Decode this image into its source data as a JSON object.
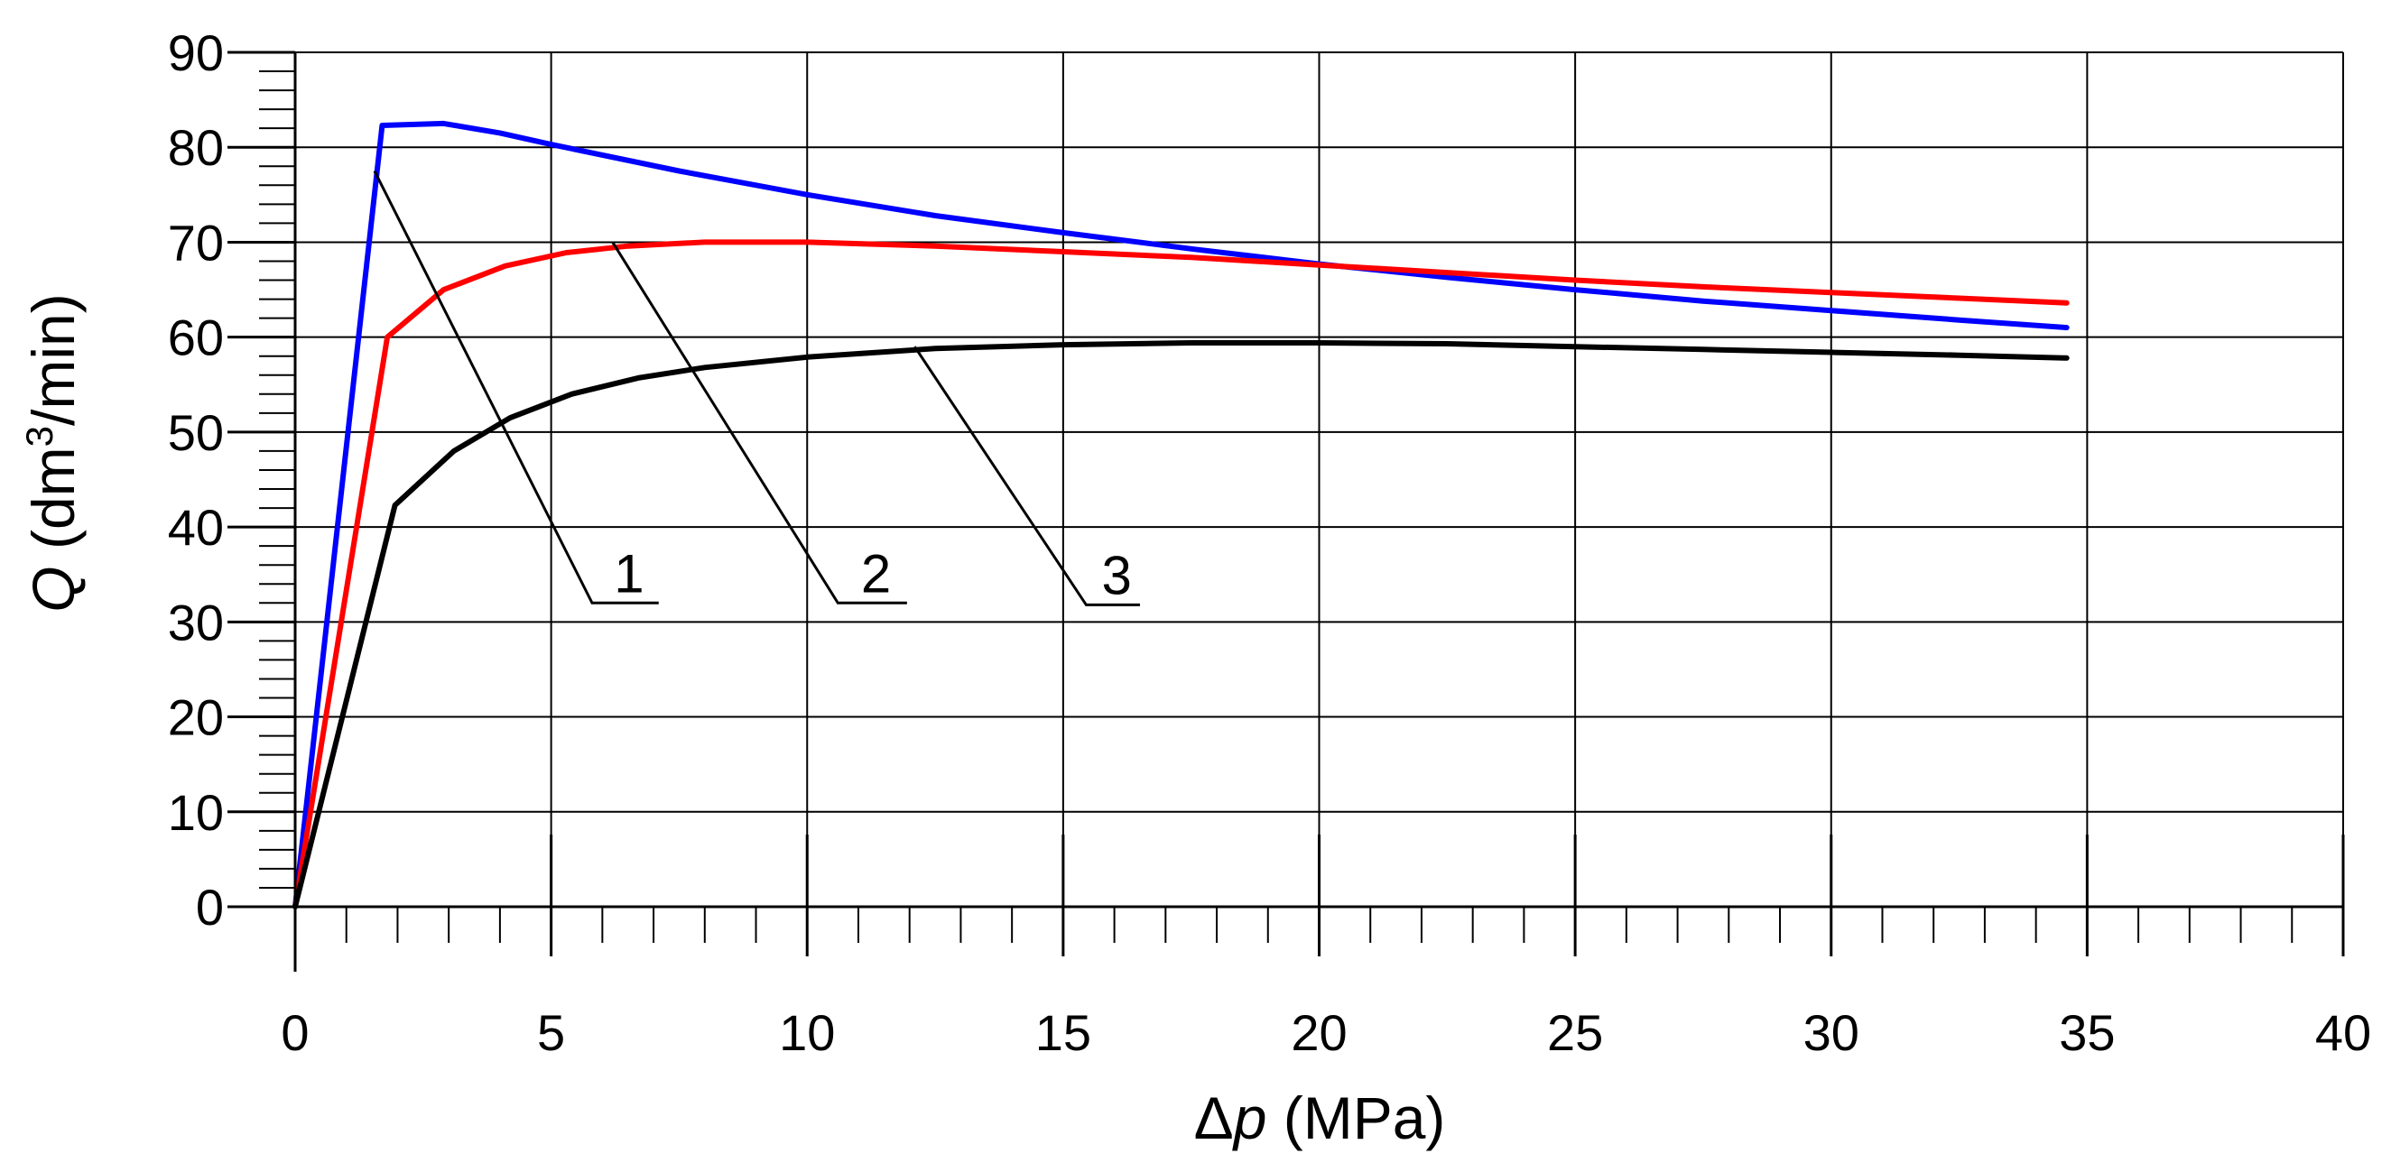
{
  "chart_data": {
    "type": "line",
    "title": "",
    "xlabel": {
      "symbol": "Δ",
      "variable": "p",
      "unit": " (MPa)"
    },
    "ylabel": {
      "variable": "Q",
      "unit_prefix": " (dm",
      "unit_sup": "3",
      "unit_suffix": "/min)"
    },
    "xlim": [
      0,
      40
    ],
    "ylim": [
      0,
      90
    ],
    "xticks": [
      0,
      5,
      10,
      15,
      20,
      25,
      30,
      35,
      40
    ],
    "yticks": [
      0,
      10,
      20,
      30,
      40,
      50,
      60,
      70,
      80,
      90
    ],
    "grid": true,
    "series": [
      {
        "name": "1",
        "color": "#0000ff",
        "points": [
          [
            0,
            0
          ],
          [
            1.7,
            82.3
          ],
          [
            2.9,
            82.5
          ],
          [
            4.0,
            81.5
          ],
          [
            5.0,
            80.3
          ],
          [
            7.5,
            77.5
          ],
          [
            10.0,
            75.0
          ],
          [
            12.5,
            72.8
          ],
          [
            15.0,
            71.0
          ],
          [
            17.5,
            69.3
          ],
          [
            20.0,
            67.7
          ],
          [
            22.5,
            66.3
          ],
          [
            25.0,
            65.0
          ],
          [
            27.5,
            63.8
          ],
          [
            30.0,
            62.8
          ],
          [
            32.5,
            61.8
          ],
          [
            34.6,
            61.0
          ]
        ]
      },
      {
        "name": "2",
        "color": "#ff0000",
        "points": [
          [
            0,
            0
          ],
          [
            1.8,
            60.0
          ],
          [
            2.9,
            65.0
          ],
          [
            4.1,
            67.5
          ],
          [
            5.3,
            68.9
          ],
          [
            6.5,
            69.6
          ],
          [
            8.0,
            70.0
          ],
          [
            10.0,
            70.0
          ],
          [
            12.5,
            69.6
          ],
          [
            15.0,
            69.0
          ],
          [
            17.5,
            68.4
          ],
          [
            20.0,
            67.6
          ],
          [
            22.5,
            66.8
          ],
          [
            25.0,
            66.0
          ],
          [
            27.5,
            65.3
          ],
          [
            30.0,
            64.7
          ],
          [
            32.5,
            64.1
          ],
          [
            34.6,
            63.6
          ]
        ]
      },
      {
        "name": "3",
        "color": "#000000",
        "points": [
          [
            0,
            0
          ],
          [
            1.95,
            42.3
          ],
          [
            3.1,
            48.0
          ],
          [
            4.2,
            51.5
          ],
          [
            5.4,
            54.0
          ],
          [
            6.7,
            55.7
          ],
          [
            8.0,
            56.8
          ],
          [
            10.0,
            57.9
          ],
          [
            12.5,
            58.8
          ],
          [
            15.0,
            59.2
          ],
          [
            17.5,
            59.4
          ],
          [
            20.0,
            59.4
          ],
          [
            22.5,
            59.3
          ],
          [
            25.0,
            59.0
          ],
          [
            27.5,
            58.7
          ],
          [
            30.0,
            58.4
          ],
          [
            32.5,
            58.1
          ],
          [
            34.6,
            57.8
          ]
        ]
      }
    ],
    "annotations": [
      {
        "label": "1",
        "color": "#000000",
        "point": [
          1.55,
          77.5
        ],
        "elbow": [
          5.8,
          32.0
        ],
        "end": [
          7.1,
          32.0
        ]
      },
      {
        "label": "2",
        "color": "#000000",
        "point": [
          6.2,
          70.0
        ],
        "elbow": [
          10.6,
          32.0
        ],
        "end": [
          11.95,
          32.0
        ]
      },
      {
        "label": "3",
        "color": "#000000",
        "point": [
          12.1,
          59.0
        ],
        "elbow": [
          15.45,
          31.8
        ],
        "end": [
          16.5,
          31.8
        ]
      }
    ]
  }
}
